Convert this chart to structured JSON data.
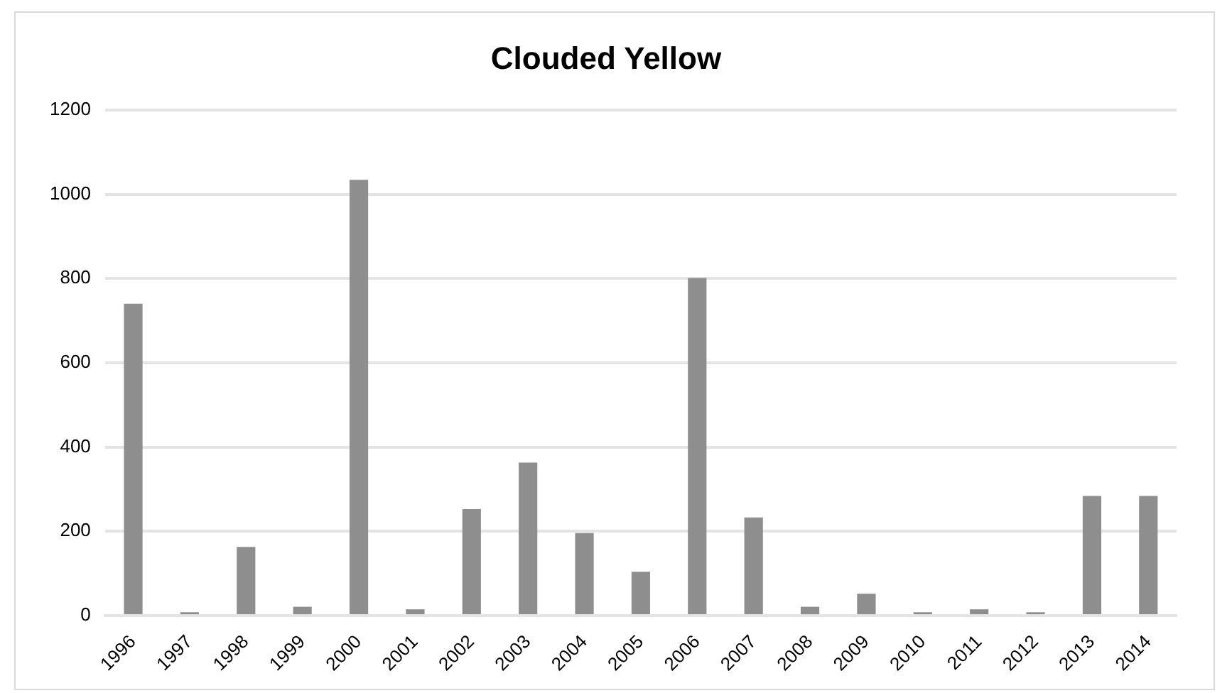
{
  "chart_data": {
    "type": "bar",
    "title": "Clouded Yellow",
    "categories": [
      "1996",
      "1997",
      "1998",
      "1999",
      "2000",
      "2001",
      "2002",
      "2003",
      "2004",
      "2005",
      "2006",
      "2007",
      "2008",
      "2009",
      "2010",
      "2011",
      "2012",
      "2013",
      "2014"
    ],
    "values": [
      740,
      8,
      163,
      21,
      1034,
      15,
      253,
      363,
      196,
      104,
      801,
      233,
      21,
      52,
      8,
      15,
      8,
      284,
      284
    ],
    "color": "#8e8e8e",
    "ylim": [
      0,
      1200
    ],
    "yticks": [
      0,
      200,
      400,
      600,
      800,
      1000,
      1200
    ],
    "grid": "y"
  }
}
